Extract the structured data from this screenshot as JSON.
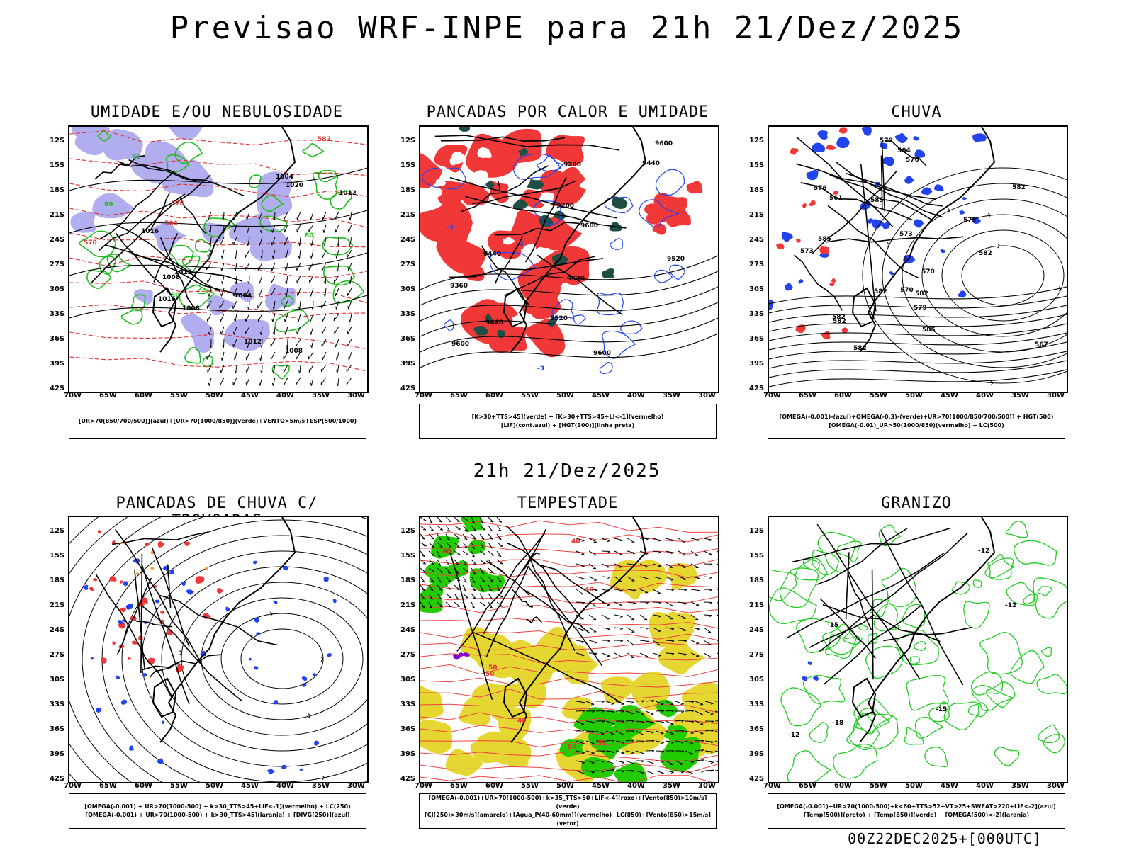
{
  "title": "Previsao WRF-INPE  para 21h 21/Dez/2025",
  "mid_time": "21h 21/Dez/2025",
  "footer": "00Z22DEC2025+[000UTC]",
  "y_ticks": [
    "12S",
    "15S",
    "18S",
    "21S",
    "24S",
    "27S",
    "30S",
    "33S",
    "36S",
    "39S",
    "42S"
  ],
  "x_ticks": [
    "70W",
    "65W",
    "60W",
    "55W",
    "50W",
    "45W",
    "40W",
    "35W",
    "30W"
  ],
  "panels": [
    {
      "title": "UMIDADE E/OU NEBULOSIDADE",
      "legend": [
        "[UR>70(850/700/500)](azul)+[UR>70(1000/850)](verde)+VENTO>5m/s+ESP(500/1000)"
      ],
      "contour_labels": [
        "1004",
        "1008",
        "1012",
        "1016",
        "1012",
        "1008",
        "1004",
        "1020",
        "1012",
        "1016",
        "1008",
        "576",
        "570",
        "582",
        "564",
        "80",
        "80",
        "80",
        "80"
      ]
    },
    {
      "title": "PANCADAS POR CALOR E UMIDADE",
      "legend": [
        "[K>30+TTS>45](verde) + [K>30+TTS>45+LI<-1](vermelho)",
        "[LIF](cont.azul) + [HGT(300)](linha preta)"
      ],
      "contour_labels": [
        "9600",
        "9600",
        "9440",
        "9520",
        "9600",
        "9600",
        "9520",
        "9360",
        "9440",
        "9280",
        "9200",
        "9520",
        "9440",
        "-3",
        "-3",
        "-3"
      ]
    },
    {
      "title": "CHUVA",
      "legend": [
        "[OMEGA(-0.001)-(azul)+OMEGA(-0.3)-(verde)+UR>70(1000/850/700/500)] + HGT(500)",
        "[OMEGA(-0.01)_UR>50(1000/850)(vermelho) + LC(500)"
      ],
      "contour_labels": [
        "582",
        "582",
        "585",
        "582",
        "579",
        "585",
        "582",
        "585",
        "582",
        "582",
        "579",
        "576",
        "573",
        "570",
        "567",
        "564",
        "561",
        "582",
        "579",
        "576",
        "573",
        "570"
      ]
    },
    {
      "title": "PANCADAS DE CHUVA C/ TROVOADAS",
      "legend": [
        "[OMEGA(-0.001) + UR>70(1000-500) + k>30_TTS>45+LIF<-1](vermelho) + LC(250)",
        "[OMEGA(-0.001) + UR>70(1000-500) + k>30_TTS>45](laranja) + [DIVG(250)](azul)"
      ],
      "contour_labels": []
    },
    {
      "title": "TEMPESTADE",
      "legend": [
        "[OMEGA(-0.001)+UR>70(1000-500)+k>35_TTS>50+LIF<-4](roxo)+[Vento(850)>10m/s](verde)",
        "[CJ(250)>30m/s](amarelo)+[Agua_P(40-60mm)](vermelho)+LC(850)+[Vento(850)>15m/s](vetor)"
      ],
      "contour_labels": [
        "40",
        "50",
        "40",
        "40",
        "50",
        "40",
        "40",
        "50"
      ]
    },
    {
      "title": "GRANIZO",
      "legend": [
        "[OMEGA(-0.001)+UR>70(1000-500)+k<60+TTS>52+VT>25+SWEAT>220+LIF<-2](azul)",
        "[Temp(500)](preto) + [Temp(850)](verde) + [OMEGA(500)<-2](laranja)"
      ],
      "contour_labels": [
        "-12",
        "-15",
        "-18",
        "-12",
        "-15",
        "-12"
      ]
    }
  ]
}
